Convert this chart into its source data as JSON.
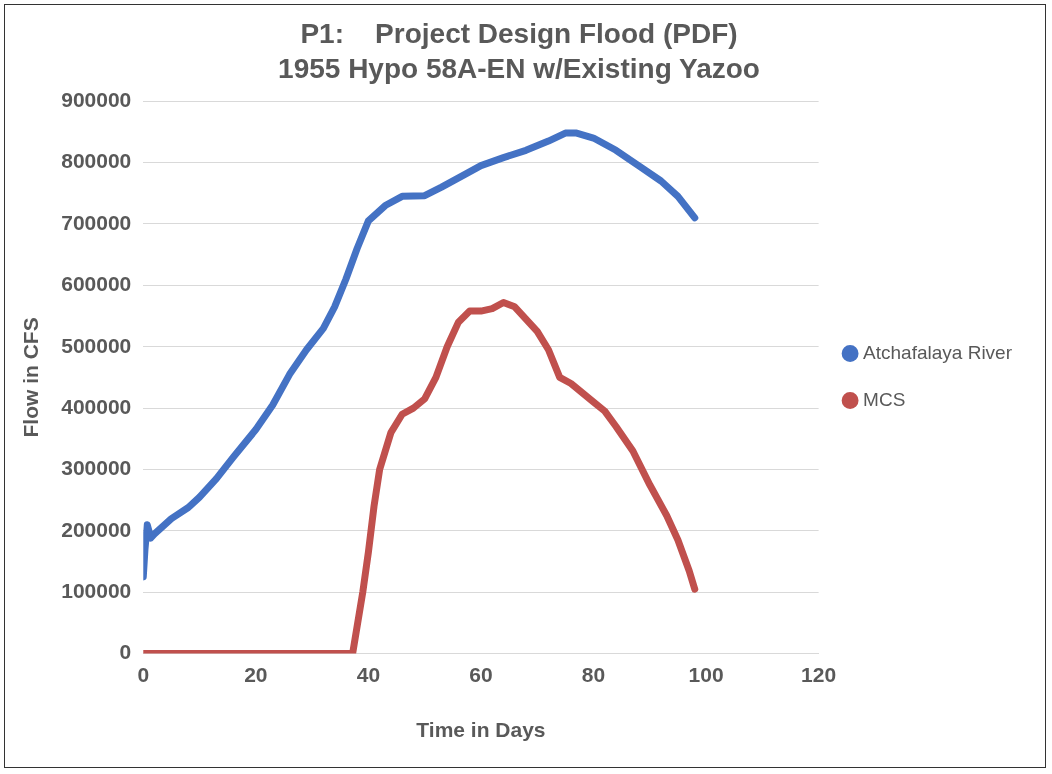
{
  "chart_data": {
    "type": "line",
    "title": "P1:    Project Design Flood (PDF)",
    "subtitle": "1955 Hypo 58A-EN w/Existing Yazoo",
    "xlabel": "Time in Days",
    "ylabel": "Flow in CFS",
    "xlim": [
      0,
      120
    ],
    "xticks": [
      0,
      20,
      40,
      60,
      80,
      100,
      120
    ],
    "ylim": [
      0,
      900000
    ],
    "yticks": [
      0,
      100000,
      200000,
      300000,
      400000,
      500000,
      600000,
      700000,
      800000,
      900000
    ],
    "grid": "y",
    "legend": "right",
    "marker": "none",
    "line_style": "solid",
    "series": [
      {
        "name": "Atchafalaya River",
        "color": "#4472c4",
        "x": [
          0,
          0.3,
          0.7,
          1,
          1.3,
          2,
          5,
          8,
          10,
          13,
          16,
          20,
          23,
          26,
          29,
          32,
          34,
          36,
          38,
          40,
          43,
          46,
          50,
          53,
          57,
          60,
          64,
          68,
          72,
          75,
          77,
          80,
          84,
          88,
          92,
          95,
          98
        ],
        "values": [
          125000,
          170000,
          210000,
          200000,
          188000,
          195000,
          220000,
          238000,
          255000,
          285000,
          320000,
          365000,
          405000,
          455000,
          495000,
          530000,
          565000,
          610000,
          660000,
          705000,
          730000,
          745000,
          746000,
          760000,
          780000,
          795000,
          808000,
          820000,
          835000,
          848000,
          848000,
          840000,
          820000,
          795000,
          770000,
          745000,
          710000
        ]
      },
      {
        "name": "MCS",
        "color": "#c0504d",
        "x": [
          0,
          10,
          20,
          30,
          37.2,
          39,
          40,
          41,
          42,
          44,
          46,
          48,
          50,
          52,
          54,
          56,
          58,
          60,
          62,
          64,
          66,
          68,
          70,
          72,
          74,
          76,
          80,
          82,
          84,
          87,
          90,
          93,
          95,
          97,
          98
        ],
        "values": [
          0,
          0,
          0,
          0,
          0,
          100000,
          165000,
          240000,
          300000,
          360000,
          390000,
          400000,
          415000,
          450000,
          500000,
          540000,
          558000,
          558000,
          562000,
          572000,
          565000,
          545000,
          525000,
          495000,
          450000,
          440000,
          410000,
          395000,
          370000,
          330000,
          275000,
          225000,
          185000,
          135000,
          105000
        ]
      }
    ]
  }
}
